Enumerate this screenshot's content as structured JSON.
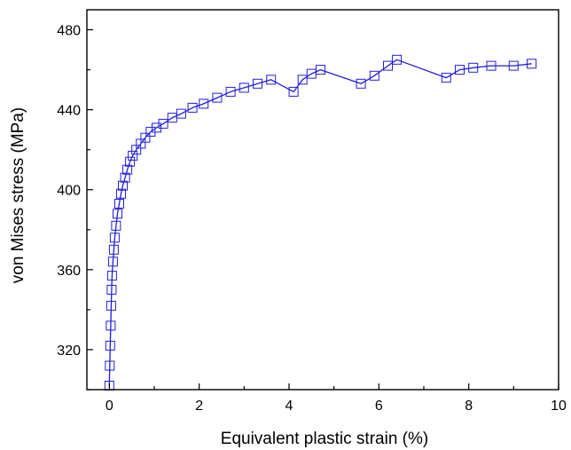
{
  "chart_data": {
    "type": "scatter",
    "title": "",
    "xlabel": "Equivalent plastic strain (%)",
    "ylabel": "von Mises stress (MPa)",
    "xlim": [
      -0.5,
      10
    ],
    "ylim": [
      300,
      490
    ],
    "xticks": [
      0,
      2,
      4,
      6,
      8,
      10
    ],
    "yticks": [
      320,
      360,
      400,
      440,
      480
    ],
    "x_minor_step": 1,
    "y_minor_step": 20,
    "grid": false,
    "legend": "none",
    "marker": "open-square",
    "connected_by_line": true,
    "colors": {
      "series": "#1f1fd6",
      "axes": "#000000"
    },
    "series": [
      {
        "x": [
          0.0,
          0.01,
          0.02,
          0.03,
          0.04,
          0.05,
          0.06,
          0.08,
          0.1,
          0.12,
          0.15,
          0.18,
          0.22,
          0.26,
          0.3,
          0.35,
          0.4,
          0.46,
          0.52,
          0.6,
          0.7,
          0.8,
          0.92,
          1.05,
          1.2,
          1.4,
          1.6,
          1.85,
          2.1,
          2.4,
          2.7,
          3.0,
          3.3,
          3.6,
          4.1,
          4.3,
          4.5,
          4.7,
          5.6,
          5.9,
          6.2,
          6.4,
          7.5,
          7.8,
          8.1,
          8.5,
          9.0,
          9.4
        ],
        "y": [
          302,
          312,
          322,
          332,
          342,
          350,
          357,
          364,
          370,
          376,
          382,
          388,
          393,
          398,
          402,
          406,
          410,
          414,
          417,
          420,
          423,
          426,
          429,
          431,
          433,
          436,
          438,
          441,
          443,
          446,
          449,
          451,
          453,
          455,
          449,
          455,
          458,
          460,
          453,
          457,
          462,
          465,
          456,
          460,
          461,
          462,
          462,
          463
        ]
      }
    ]
  }
}
